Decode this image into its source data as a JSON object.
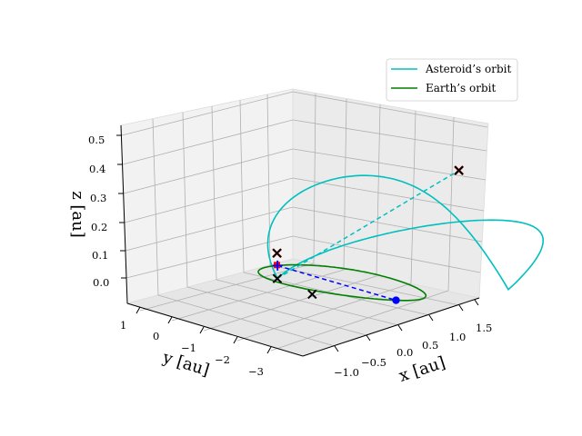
{
  "chart_data": {
    "type": "line",
    "subtype": "3d-orbit-plot",
    "title": "",
    "xlabel": "x [au]",
    "ylabel": "y [au]",
    "zlabel": "z [au]",
    "x_ticks": [
      "−1.0",
      "−0.5",
      "0.0",
      "0.5",
      "1.0",
      "1.5"
    ],
    "y_ticks": [
      "1",
      "0",
      "−1",
      "−2",
      "−3"
    ],
    "z_ticks": [
      "0.0",
      "0.1",
      "0.2",
      "0.3",
      "0.4",
      "0.5"
    ],
    "xlim": [
      -1.2,
      1.7
    ],
    "ylim": [
      -3.5,
      1.3
    ],
    "zlim": [
      -0.02,
      0.55
    ],
    "grid": true,
    "legend_position": "upper-right",
    "series": [
      {
        "name": "Asteroid’s orbit",
        "color": "#00bfbf",
        "style": "solid",
        "orbit": {
          "a": 1.95,
          "e": 0.56,
          "inclination_deg": 9.8,
          "node_longitude_deg": -138,
          "arg_perihelion_deg": 0
        }
      },
      {
        "name": "Earth’s orbit",
        "color": "#008000",
        "style": "solid",
        "orbit": {
          "a": 1.0,
          "e": 0.0,
          "inclination_deg": 0,
          "node_longitude_deg": 0,
          "arg_perihelion_deg": 0
        }
      }
    ],
    "lines": [
      {
        "name": "apsidal-line",
        "color": "#00bfbf",
        "style": "dashed",
        "from": [
          -0.64,
          -0.58,
          0.0
        ],
        "to": [
          1.45,
          -2.99,
          0.47
        ]
      },
      {
        "name": "earth-asteroid-line",
        "color": "#0000ff",
        "style": "dashed",
        "from": [
          -0.95,
          0.3,
          0.0
        ],
        "to": [
          0.72,
          -0.69,
          0.0
        ]
      }
    ],
    "markers": [
      {
        "name": "sun-marker",
        "shape": "square",
        "color": "#ff0000",
        "point": [
          -0.97,
          0.33,
          0.0
        ]
      },
      {
        "name": "earth-plus-marker",
        "shape": "plus",
        "color": "#0000ff",
        "point": [
          -0.95,
          0.3,
          0.0
        ]
      },
      {
        "name": "asteroid-dot-marker",
        "shape": "dot",
        "color": "#0000ff",
        "point": [
          0.72,
          -0.69,
          0.0
        ]
      },
      {
        "name": "perihelion-cross",
        "shape": "x",
        "color": "#000000",
        "point": [
          -0.64,
          -0.58,
          0.0
        ]
      },
      {
        "name": "node-cross",
        "shape": "x",
        "color": "#000000",
        "point": [
          -0.08,
          -1.29,
          0.0
        ]
      },
      {
        "name": "aphelion-red-cross",
        "shape": "x",
        "color": "#ff0000",
        "point": [
          1.45,
          -2.99,
          0.47
        ]
      },
      {
        "name": "aphelion-black-cross",
        "shape": "x",
        "color": "#000000",
        "point": [
          1.45,
          -2.99,
          0.47
        ]
      },
      {
        "name": "near-node-red-cross",
        "shape": "x",
        "color": "#ff0000",
        "point": [
          -0.64,
          -0.58,
          0.08
        ]
      },
      {
        "name": "near-node-black-cross",
        "shape": "x",
        "color": "#000000",
        "point": [
          -0.64,
          -0.58,
          0.08
        ]
      }
    ]
  }
}
